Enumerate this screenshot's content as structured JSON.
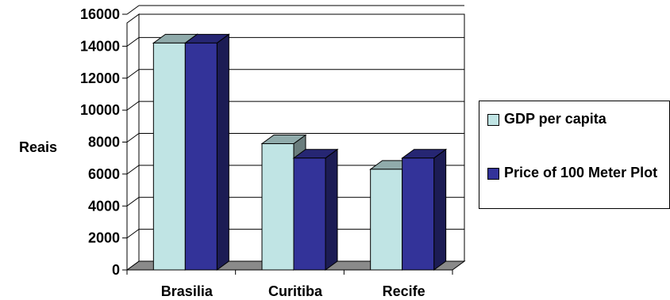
{
  "chart_data": {
    "type": "bar",
    "title": "",
    "xlabel": "",
    "ylabel": "Reais",
    "categories": [
      "Brasilia",
      "Curitiba",
      "Recife"
    ],
    "ylim": [
      0,
      16000
    ],
    "yticks": [
      0,
      2000,
      4000,
      6000,
      8000,
      10000,
      12000,
      14000,
      16000
    ],
    "grid": true,
    "three_d": true,
    "legend_position": "right",
    "series": [
      {
        "name": "GDP per capita",
        "color": "#c0e4e4",
        "values": [
          14200,
          7900,
          6300
        ]
      },
      {
        "name": "Price of 100 Meter Plot",
        "color": "#333399",
        "values": [
          14200,
          7000,
          7000
        ]
      }
    ]
  }
}
